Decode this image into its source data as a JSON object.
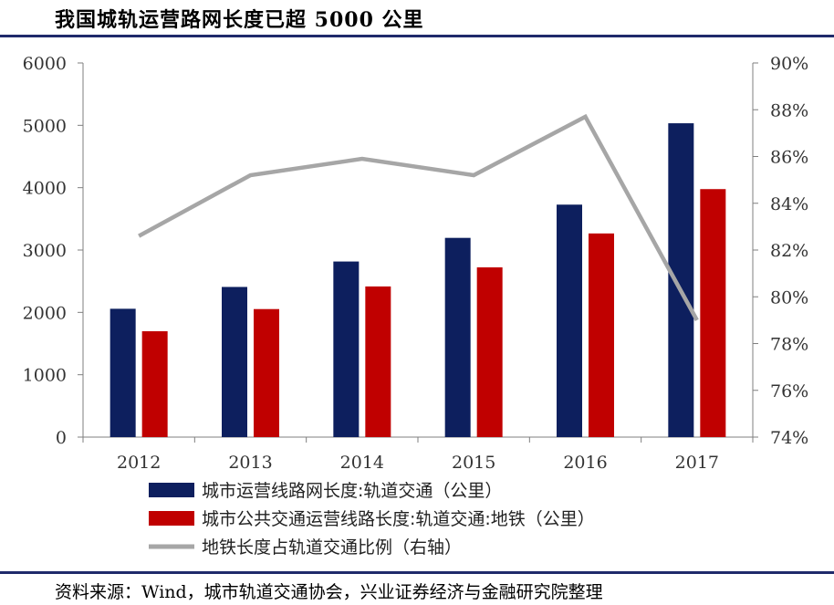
{
  "title": "我国城轨运营路网长度已超 5000 公里",
  "source": "资料来源：Wind，城市轨道交通协会，兴业证券经济与金融研究院整理",
  "colors": {
    "navy": "#0d1f5e",
    "red": "#c00000",
    "gray": "#a6a6a6",
    "rule": "#1f2a6b"
  },
  "chart_data": {
    "type": "bar",
    "categories": [
      "2012",
      "2013",
      "2014",
      "2015",
      "2016",
      "2017"
    ],
    "series": [
      {
        "name": "城市运营线路网长度:轨道交通（公里）",
        "kind": "bar",
        "axis": "left",
        "color": "#0d1f5e",
        "values": [
          2058,
          2408,
          2816,
          3195,
          3728,
          5033
        ]
      },
      {
        "name": "城市公共交通运营线路长度:轨道交通:地铁（公里）",
        "kind": "bar",
        "axis": "left",
        "color": "#c00000",
        "values": [
          1698,
          2053,
          2416,
          2722,
          3266,
          3977
        ]
      },
      {
        "name": "地铁长度占轨道交通比例（右轴）",
        "kind": "line",
        "axis": "right",
        "color": "#a6a6a6",
        "values": [
          82.6,
          85.2,
          85.9,
          85.2,
          87.7,
          79.0
        ]
      }
    ],
    "ylim": [
      0,
      6000
    ],
    "yticks": [
      "0",
      "1000",
      "2000",
      "3000",
      "4000",
      "5000",
      "6000"
    ],
    "y2lim": [
      74,
      90
    ],
    "y2ticks": [
      "74%",
      "76%",
      "78%",
      "80%",
      "82%",
      "84%",
      "86%",
      "88%",
      "90%"
    ],
    "legend_position": "bottom",
    "grid": false
  }
}
